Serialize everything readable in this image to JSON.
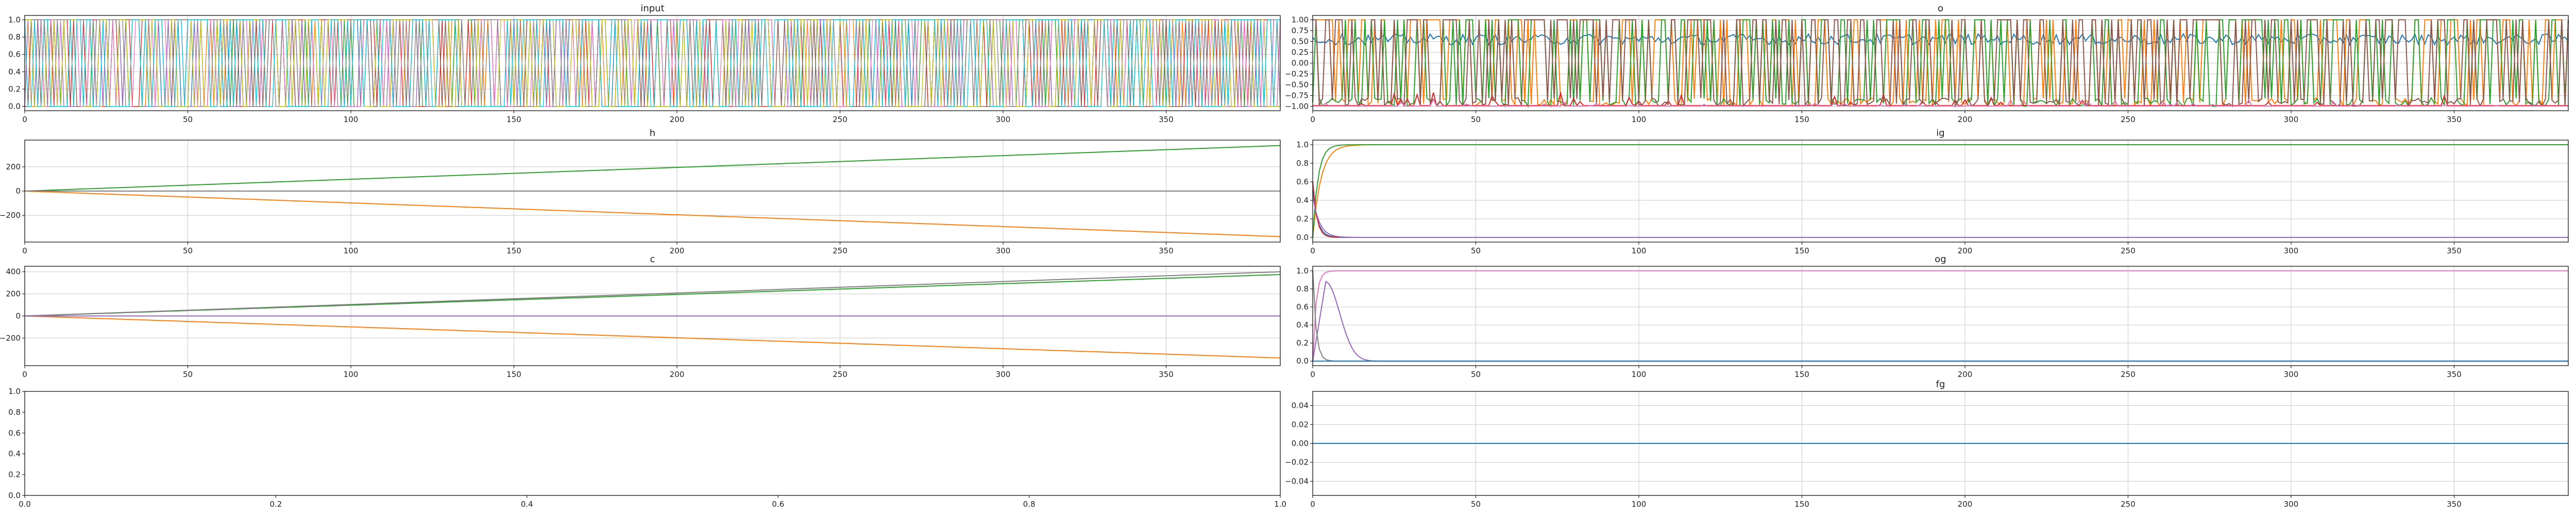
{
  "figure": {
    "background": "#ffffff"
  },
  "colors": [
    "#1f77b4",
    "#ff7f0e",
    "#2ca02c",
    "#d62728",
    "#9467bd",
    "#8c564b",
    "#e377c2",
    "#7f7f7f",
    "#bcbd22",
    "#17becf"
  ],
  "chart_data": [
    {
      "id": "input",
      "type": "line",
      "title": "input",
      "xlim": [
        0,
        385
      ],
      "ylim": [
        -0.05,
        1.05
      ],
      "xticks": [
        0,
        50,
        100,
        150,
        200,
        250,
        300,
        350
      ],
      "yticks": [
        0.0,
        0.2,
        0.4,
        0.6,
        0.8,
        1.0
      ],
      "ytick_labels": [
        "0.0",
        "0.2",
        "0.4",
        "0.6",
        "0.8",
        "1.0"
      ],
      "grid": true,
      "series_description": "many binary one-hot switching series, value 0 or 1, switching every time step",
      "series_count": 10,
      "switch_prob": 0.35
    },
    {
      "id": "o",
      "type": "line",
      "title": "o",
      "xlim": [
        0,
        385
      ],
      "ylim": [
        -1.1,
        1.1
      ],
      "xticks": [
        0,
        50,
        100,
        150,
        200,
        250,
        300,
        350
      ],
      "yticks": [
        -1.0,
        -0.75,
        -0.5,
        -0.25,
        0.0,
        0.25,
        0.5,
        0.75,
        1.0
      ],
      "ytick_labels": [
        "−1.00",
        "−0.75",
        "−0.50",
        "−0.25",
        "0.00",
        "0.25",
        "0.50",
        "0.75",
        "1.00"
      ],
      "grid": true,
      "series": [
        {
          "color_index": 0,
          "kind": "noise",
          "base": 0.55,
          "amp": 0.25
        },
        {
          "color_index": 1,
          "kind": "spiky",
          "base": 1.0,
          "low": -1.0
        },
        {
          "color_index": 2,
          "kind": "spiky",
          "base": 1.0,
          "low": -1.0
        },
        {
          "color_index": 3,
          "kind": "lowspike",
          "base": -0.98,
          "amp": 0.3
        },
        {
          "color_index": 5,
          "kind": "spiky",
          "base": 1.0,
          "low": -1.0
        },
        {
          "color_index": 6,
          "kind": "lowspike",
          "base": -0.99,
          "amp": 0.15
        }
      ]
    },
    {
      "id": "h",
      "type": "line",
      "title": "h",
      "xlim": [
        0,
        385
      ],
      "ylim": [
        -420,
        420
      ],
      "xticks": [
        0,
        50,
        100,
        150,
        200,
        250,
        300,
        350
      ],
      "yticks": [
        -200,
        0,
        200
      ],
      "ytick_labels": [
        "−200",
        "0",
        "200"
      ],
      "grid": true,
      "series": [
        {
          "color_index": 2,
          "kind": "linear",
          "end": 375
        },
        {
          "color_index": 1,
          "kind": "linear",
          "end": -375
        },
        {
          "color_index": 7,
          "kind": "linear",
          "end": 0
        }
      ]
    },
    {
      "id": "ig",
      "type": "line",
      "title": "ig",
      "xlim": [
        0,
        385
      ],
      "ylim": [
        -0.05,
        1.05
      ],
      "xticks": [
        0,
        50,
        100,
        150,
        200,
        250,
        300,
        350
      ],
      "yticks": [
        0.0,
        0.2,
        0.4,
        0.6,
        0.8,
        1.0
      ],
      "ytick_labels": [
        "0.0",
        "0.2",
        "0.4",
        "0.6",
        "0.8",
        "1.0"
      ],
      "grid": true,
      "series": [
        {
          "color_index": 1,
          "kind": "rise",
          "end": 1.0,
          "tau": 2.5
        },
        {
          "color_index": 2,
          "kind": "rise",
          "end": 1.0,
          "tau": 1.6
        },
        {
          "color_index": 0,
          "kind": "decay",
          "start": 0.5,
          "tau": 1.5
        },
        {
          "color_index": 3,
          "kind": "decay",
          "start": 0.6,
          "tau": 1.2
        },
        {
          "color_index": 4,
          "kind": "decay",
          "start": 0.45,
          "tau": 2.0
        }
      ]
    },
    {
      "id": "c",
      "type": "line",
      "title": "c",
      "xlim": [
        0,
        385
      ],
      "ylim": [
        -450,
        450
      ],
      "xticks": [
        0,
        50,
        100,
        150,
        200,
        250,
        300,
        350
      ],
      "yticks": [
        -200,
        0,
        200,
        400
      ],
      "ytick_labels": [
        "−200",
        "0",
        "200",
        "400"
      ],
      "grid": true,
      "series": [
        {
          "color_index": 2,
          "kind": "linear",
          "end": 375
        },
        {
          "color_index": 7,
          "kind": "linear",
          "end": 400
        },
        {
          "color_index": 1,
          "kind": "linear",
          "end": -380
        },
        {
          "color_index": 4,
          "kind": "linear",
          "end": 0
        }
      ]
    },
    {
      "id": "og",
      "type": "line",
      "title": "og",
      "xlim": [
        0,
        385
      ],
      "ylim": [
        -0.05,
        1.05
      ],
      "xticks": [
        0,
        50,
        100,
        150,
        200,
        250,
        300,
        350
      ],
      "yticks": [
        0.0,
        0.2,
        0.4,
        0.6,
        0.8,
        1.0
      ],
      "ytick_labels": [
        "0.0",
        "0.2",
        "0.4",
        "0.6",
        "0.8",
        "1.0"
      ],
      "grid": true,
      "series": [
        {
          "color_index": 6,
          "kind": "rise",
          "end": 1.0,
          "tau": 1.0
        },
        {
          "color_index": 4,
          "kind": "bump",
          "peak": 0.88,
          "t_peak": 4,
          "tau": 6
        },
        {
          "color_index": 7,
          "kind": "decay",
          "start": 1.0,
          "tau": 1.0
        },
        {
          "color_index": 0,
          "kind": "decay",
          "start": 0.0,
          "tau": 1.0
        }
      ]
    },
    {
      "id": "empty",
      "type": "line",
      "title": "",
      "xlim": [
        0,
        1
      ],
      "ylim": [
        0,
        1
      ],
      "xticks": [
        0.0,
        0.2,
        0.4,
        0.6,
        0.8,
        1.0
      ],
      "xtick_labels": [
        "0.0",
        "0.2",
        "0.4",
        "0.6",
        "0.8",
        "1.0"
      ],
      "yticks": [
        0.0,
        0.2,
        0.4,
        0.6,
        0.8,
        1.0
      ],
      "ytick_labels": [
        "0.0",
        "0.2",
        "0.4",
        "0.6",
        "0.8",
        "1.0"
      ],
      "grid": false,
      "series": []
    },
    {
      "id": "fg",
      "type": "line",
      "title": "fg",
      "xlim": [
        0,
        385
      ],
      "ylim": [
        -0.055,
        0.055
      ],
      "xticks": [
        0,
        50,
        100,
        150,
        200,
        250,
        300,
        350
      ],
      "yticks": [
        -0.04,
        -0.02,
        0.0,
        0.02,
        0.04
      ],
      "ytick_labels": [
        "−0.04",
        "−0.02",
        "0.00",
        "0.02",
        "0.04"
      ],
      "grid": true,
      "series": [
        {
          "color_index": 0,
          "kind": "const",
          "value": 0.0
        }
      ]
    }
  ]
}
